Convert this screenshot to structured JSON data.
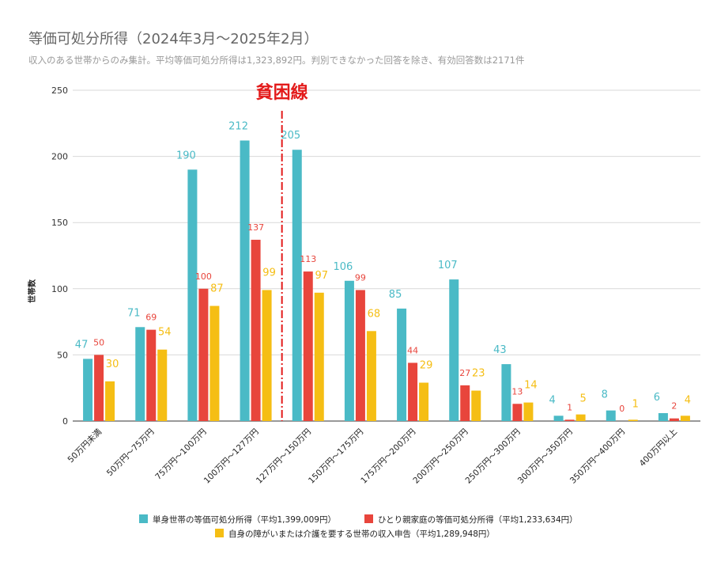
{
  "chart_data": {
    "type": "bar",
    "title": "等価可処分所得（2024年3月～2025年2月）",
    "subtitle": "収入のある世帯からのみ集計。平均等価可処分所得は1,323,892円。判別できなかった回答を除き、有効回答数は2171件",
    "ylabel": "世帯数",
    "xlabel": "",
    "ylim": [
      0,
      250
    ],
    "yticks": [
      0,
      50,
      100,
      150,
      200,
      250
    ],
    "grid": true,
    "categories": [
      "50万円未満",
      "50万円～75万円",
      "75万円～100万円",
      "100万円～127万円",
      "127万円～150万円",
      "150万円～175万円",
      "175万円～200万円",
      "200万円～250万円",
      "250万円～300万円",
      "300万円～350万円",
      "350万円～400万円",
      "400万円以上"
    ],
    "series": [
      {
        "name": "単身世帯の等価可処分所得（平均1,399,009円）",
        "color": "#4ABAC6",
        "values": [
          47,
          71,
          190,
          212,
          205,
          106,
          85,
          107,
          43,
          4,
          8,
          6
        ]
      },
      {
        "name": "ひとり親家庭の等価可処分所得（平均1,233,634円）",
        "color": "#E8453C",
        "values": [
          50,
          69,
          100,
          137,
          113,
          99,
          44,
          27,
          13,
          1,
          0,
          2
        ]
      },
      {
        "name": "自身の障がいまたは介護を要する世帯の収入申告（平均1,289,948円）",
        "color": "#F5BE14",
        "values": [
          30,
          54,
          87,
          99,
          97,
          68,
          29,
          23,
          14,
          5,
          1,
          4
        ]
      }
    ],
    "annotation": {
      "label": "貧困線",
      "color": "#E31B1B",
      "between_categories": [
        "100万円～127万円",
        "127万円～150万円"
      ]
    },
    "legend_position": "bottom"
  }
}
